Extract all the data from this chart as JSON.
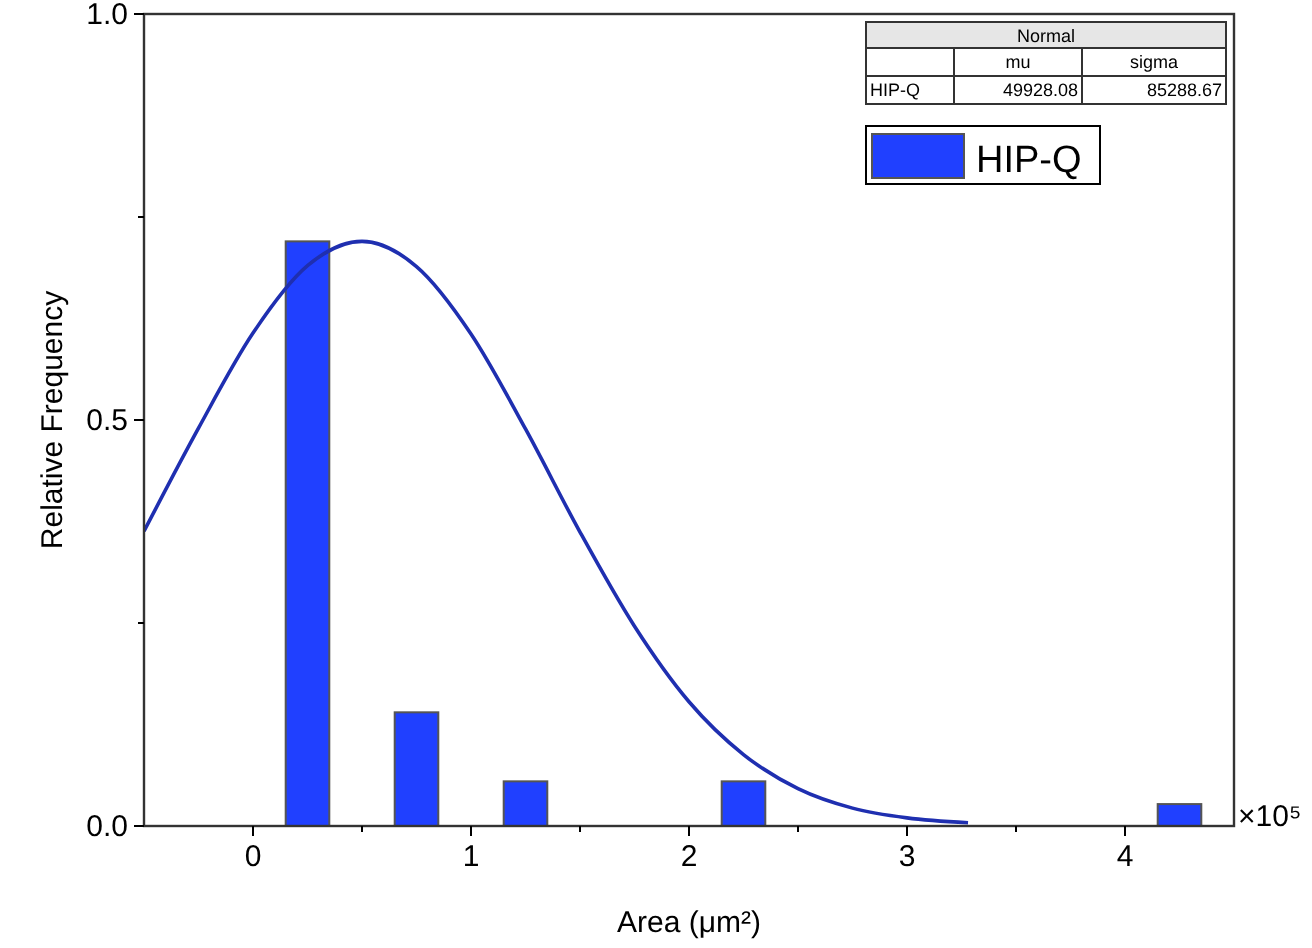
{
  "chart_data": {
    "type": "bar",
    "xlabel": "Area (μm²)",
    "ylabel": "Relative Frequency",
    "x": [
      0.25,
      0.75,
      1.25,
      2.25,
      4.25
    ],
    "series": [
      {
        "name": "HIP-Q",
        "color": "#2040ff",
        "values": [
          0.72,
          0.14,
          0.055,
          0.055,
          0.027
        ]
      },
      {
        "type": "line",
        "color": "#1f2fb0",
        "x": [
          -0.5,
          -0.25,
          0,
          0.25,
          0.5,
          0.75,
          1,
          1.25,
          1.5,
          1.75,
          2,
          2.25,
          2.5,
          2.75,
          3,
          3.28
        ],
        "values": [
          0.363,
          0.49,
          0.607,
          0.69,
          0.72,
          0.689,
          0.606,
          0.489,
          0.362,
          0.246,
          0.153,
          0.088,
          0.046,
          0.022,
          0.01,
          0.004
        ]
      }
    ],
    "xlim": [
      -0.5,
      4.5
    ],
    "xticks": [
      0,
      {
        "value": 0.5,
        "label": null
      },
      1,
      {
        "value": 1.5,
        "label": null
      },
      2,
      {
        "value": 2.5,
        "label": null
      },
      3,
      {
        "value": 3.5,
        "label": null
      },
      4
    ],
    "ylim": [
      0,
      1
    ],
    "yticks": [
      {
        "value": 0,
        "label": "0.0"
      },
      {
        "value": 0.25,
        "label": null
      },
      {
        "value": 0.5,
        "label": "0.5"
      },
      {
        "value": 0.75,
        "label": null
      },
      {
        "value": 1,
        "label": "1.0"
      }
    ],
    "legend": "top right",
    "grid": false,
    "line_style": "solid",
    "annotations": [
      "×10⁵",
      "Normal",
      "mu",
      "sigma",
      "HIP-Q",
      "49928.08",
      "85288.67"
    ]
  }
}
